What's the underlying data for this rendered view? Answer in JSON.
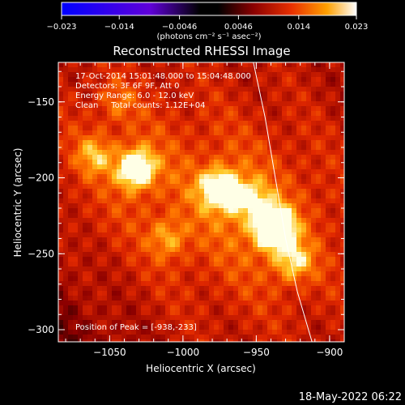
{
  "chart_data": {
    "type": "heatmap",
    "title": "Reconstructed RHESSI Image",
    "xlabel": "Heliocentric X (arcsec)",
    "ylabel": "Heliocentric Y (arcsec)",
    "colorbar": {
      "ticks": [
        "-0.023",
        "-0.014",
        "-0.0046",
        "0.0046",
        "0.014",
        "0.023"
      ],
      "min": -0.023,
      "max": 0.023,
      "unit_label": "(photons cm⁻² s⁻¹ asec⁻²)"
    },
    "xlim": [
      -1085,
      -890
    ],
    "ylim": [
      -308,
      -124
    ],
    "xticks": [
      {
        "value": -1050,
        "label": "−1050"
      },
      {
        "value": -1000,
        "label": "−1000"
      },
      {
        "value": -950,
        "label": "−950"
      },
      {
        "value": -900,
        "label": "−900"
      }
    ],
    "yticks": [
      {
        "value": -150,
        "label": "−150"
      },
      {
        "value": -200,
        "label": "−200"
      },
      {
        "value": -250,
        "label": "−250"
      },
      {
        "value": -300,
        "label": "−300"
      }
    ],
    "annotations": [
      "17-Oct-2014 15:01:48.000 to 15:04:48.000",
      "Detectors: 3F 6F 9F, Att 0",
      "Energy Range: 6.0 - 12.0 keV",
      "Clean     Total counts: 1.12E+04"
    ],
    "peak_label": "Position of Peak = [-938,-233]",
    "peak": {
      "x": -938,
      "y": -233
    },
    "sources": [
      {
        "x": -938,
        "y": -233,
        "intensity": 1.0
      },
      {
        "x": -1032,
        "y": -194,
        "intensity": 0.78
      },
      {
        "x": -975,
        "y": -207,
        "intensity": 0.7
      },
      {
        "x": -1060,
        "y": -185,
        "intensity": 0.35
      },
      {
        "x": -955,
        "y": -215,
        "intensity": 0.45
      },
      {
        "x": -925,
        "y": -255,
        "intensity": 0.42
      },
      {
        "x": -1010,
        "y": -240,
        "intensity": 0.3
      },
      {
        "x": -1045,
        "y": -150,
        "intensity": 0.2
      }
    ],
    "limb_curve": [
      {
        "x": -952,
        "y": -124
      },
      {
        "x": -944,
        "y": -160
      },
      {
        "x": -937,
        "y": -200
      },
      {
        "x": -930,
        "y": -240
      },
      {
        "x": -922,
        "y": -275
      },
      {
        "x": -912,
        "y": -308
      }
    ],
    "grid": false
  },
  "footer": {
    "timestamp": "18-May-2022 06:22"
  }
}
